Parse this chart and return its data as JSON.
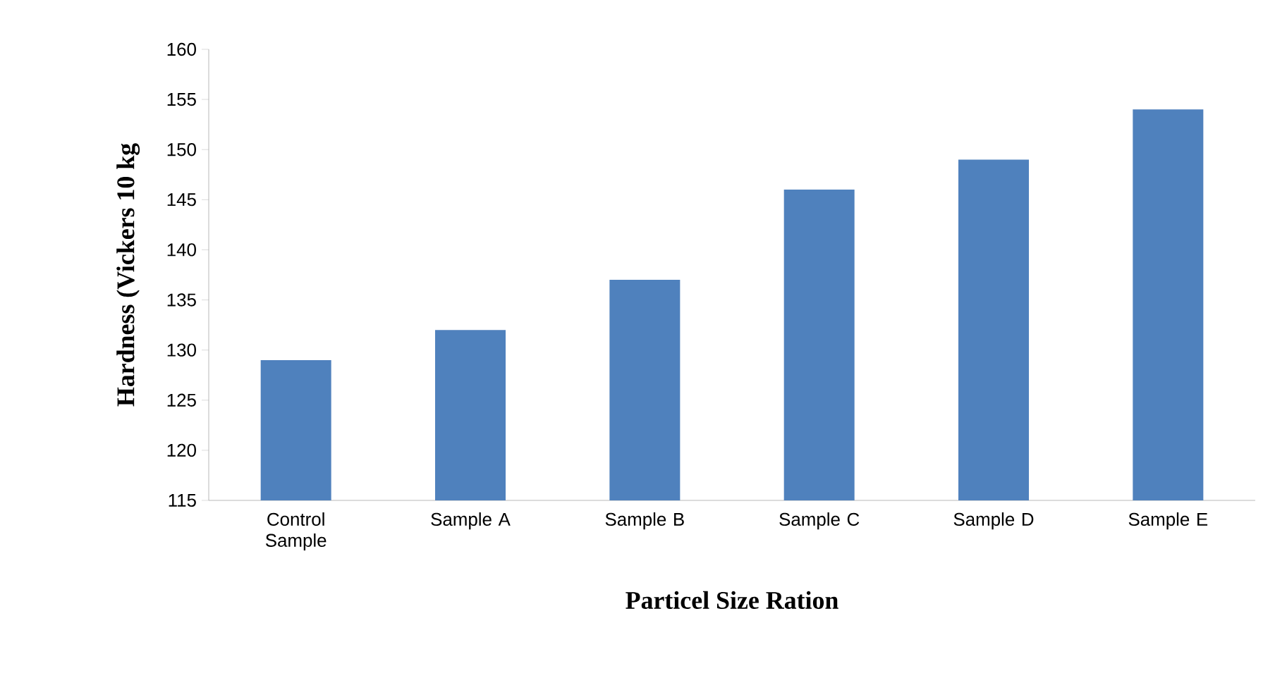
{
  "chart_data": {
    "type": "bar",
    "xlabel": "Particel Size Ration",
    "ylabel": "Hardness (Vickers 10 kg",
    "categories": [
      "Control Sample",
      "Sample A",
      "Sample B",
      "Sample C",
      "Sample D",
      "Sample E"
    ],
    "values": [
      129,
      132,
      137,
      146,
      149,
      154
    ],
    "color": "#4f81bd",
    "ylim": [
      115,
      160
    ],
    "yticks": [
      115,
      120,
      125,
      130,
      135,
      140,
      145,
      150,
      155,
      160
    ],
    "grid": false
  }
}
